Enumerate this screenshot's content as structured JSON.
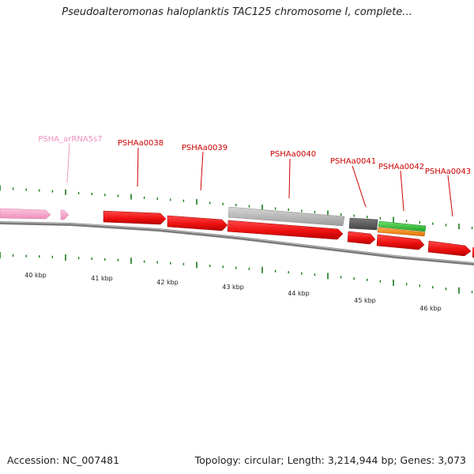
{
  "title": "Pseudoalteromonas haloplanktis TAC125 chromosome I, complete...",
  "footer": {
    "accession": "Accession: NC_007481",
    "topology": "Topology: circular; Length: 3,214,944 bp; Genes: 3,073"
  },
  "colors": {
    "gene_red": "#ee1111",
    "rna_pink": "#f7a3c8",
    "pseudo_gray": "#b9b9b9",
    "dark_gray": "#616161",
    "green": "#39c239",
    "orange": "#f08a16",
    "tick_green": "#157a15",
    "label_red": "#cc0000",
    "label_pink": "#ef8fbf"
  },
  "labels": [
    {
      "id": "PSHA_arRNA5s7",
      "text": "PSHA_arRNA5s7",
      "color": "pink"
    },
    {
      "id": "PSHAa0038",
      "text": "PSHAa0038",
      "color": "red"
    },
    {
      "id": "PSHAa0039",
      "text": "PSHAa0039",
      "color": "red"
    },
    {
      "id": "PSHAa0040",
      "text": "PSHAa0040",
      "color": "red"
    },
    {
      "id": "PSHAa0041",
      "text": "PSHAa0041",
      "color": "red"
    },
    {
      "id": "PSHAa0042",
      "text": "PSHAa0042",
      "color": "red"
    },
    {
      "id": "PSHAa0043",
      "text": "PSHAa0043",
      "color": "red"
    }
  ],
  "scale_labels": [
    "40 kbp",
    "41 kbp",
    "42 kbp",
    "43 kbp",
    "44 kbp",
    "45 kbp",
    "46 kbp"
  ]
}
